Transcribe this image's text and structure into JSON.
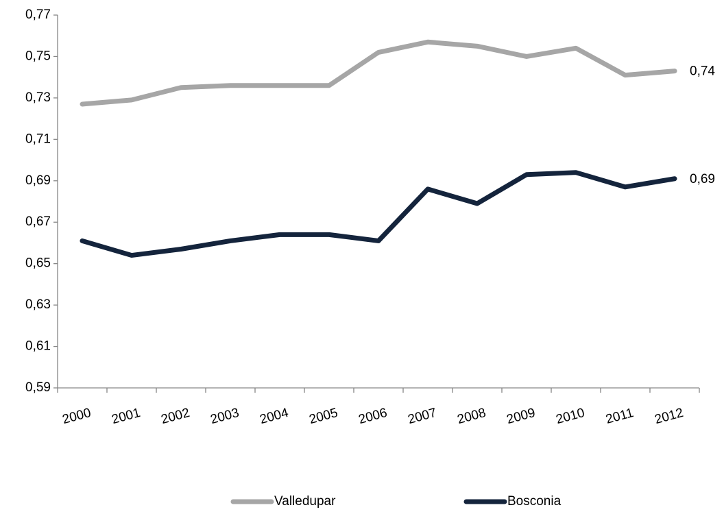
{
  "chart_data": {
    "type": "line",
    "categories": [
      "2000",
      "2001",
      "2002",
      "2003",
      "2004",
      "2005",
      "2006",
      "2007",
      "2008",
      "2009",
      "2010",
      "2011",
      "2012"
    ],
    "series": [
      {
        "name": "Valledupar",
        "color": "#a6a6a6",
        "values": [
          0.727,
          0.729,
          0.735,
          0.736,
          0.736,
          0.736,
          0.752,
          0.757,
          0.755,
          0.75,
          0.754,
          0.741,
          0.743
        ],
        "value_labels": [
          null,
          null,
          null,
          null,
          null,
          null,
          null,
          null,
          null,
          null,
          null,
          null,
          "0,74"
        ]
      },
      {
        "name": "Bosconia",
        "color": "#14243c",
        "values": [
          0.661,
          0.654,
          0.657,
          0.661,
          0.664,
          0.664,
          0.661,
          0.686,
          0.679,
          0.693,
          0.694,
          0.687,
          0.691
        ],
        "value_labels": [
          null,
          null,
          null,
          null,
          null,
          null,
          null,
          null,
          null,
          null,
          null,
          null,
          "0,69"
        ]
      }
    ],
    "ylim": [
      0.59,
      0.77
    ],
    "yticks": [
      {
        "value": 0.59,
        "label": "0,59"
      },
      {
        "value": 0.61,
        "label": "0,61"
      },
      {
        "value": 0.63,
        "label": "0,63"
      },
      {
        "value": 0.65,
        "label": "0,65"
      },
      {
        "value": 0.67,
        "label": "0,67"
      },
      {
        "value": 0.69,
        "label": "0,69"
      },
      {
        "value": 0.71,
        "label": "0,71"
      },
      {
        "value": 0.73,
        "label": "0,73"
      },
      {
        "value": 0.75,
        "label": "0,75"
      },
      {
        "value": 0.77,
        "label": "0,77"
      }
    ],
    "grid": false,
    "legend": "bottom"
  }
}
